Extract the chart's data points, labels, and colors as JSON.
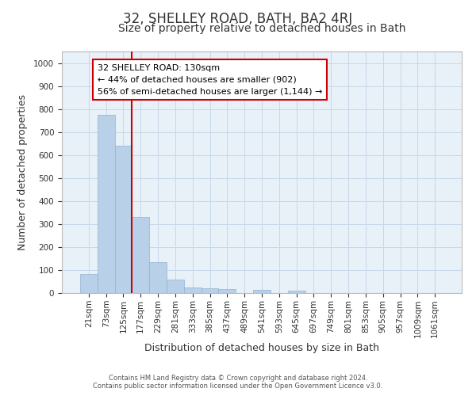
{
  "title_line1": "32, SHELLEY ROAD, BATH, BA2 4RJ",
  "title_line2": "Size of property relative to detached houses in Bath",
  "xlabel": "Distribution of detached houses by size in Bath",
  "ylabel": "Number of detached properties",
  "footnote1": "Contains HM Land Registry data © Crown copyright and database right 2024.",
  "footnote2": "Contains public sector information licensed under the Open Government Licence v3.0.",
  "annotation_line1": "32 SHELLEY ROAD: 130sqm",
  "annotation_line2": "← 44% of detached houses are smaller (902)",
  "annotation_line3": "56% of semi-detached houses are larger (1,144) →",
  "bar_color": "#b8d0e8",
  "bar_edge_color": "#90b4d0",
  "grid_color": "#c8d8e8",
  "background_color": "#e8f0f8",
  "vline_color": "#cc0000",
  "annotation_box_edge_color": "#cc0000",
  "categories": [
    "21sqm",
    "73sqm",
    "125sqm",
    "177sqm",
    "229sqm",
    "281sqm",
    "333sqm",
    "385sqm",
    "437sqm",
    "489sqm",
    "541sqm",
    "593sqm",
    "645sqm",
    "697sqm",
    "749sqm",
    "801sqm",
    "853sqm",
    "905sqm",
    "957sqm",
    "1009sqm",
    "1061sqm"
  ],
  "values": [
    82,
    775,
    640,
    330,
    135,
    60,
    25,
    22,
    18,
    0,
    14,
    0,
    10,
    0,
    0,
    0,
    0,
    0,
    0,
    0,
    0
  ],
  "ylim": [
    0,
    1050
  ],
  "yticks": [
    0,
    100,
    200,
    300,
    400,
    500,
    600,
    700,
    800,
    900,
    1000
  ],
  "vline_x_index": 2,
  "title_fontsize": 12,
  "subtitle_fontsize": 10
}
